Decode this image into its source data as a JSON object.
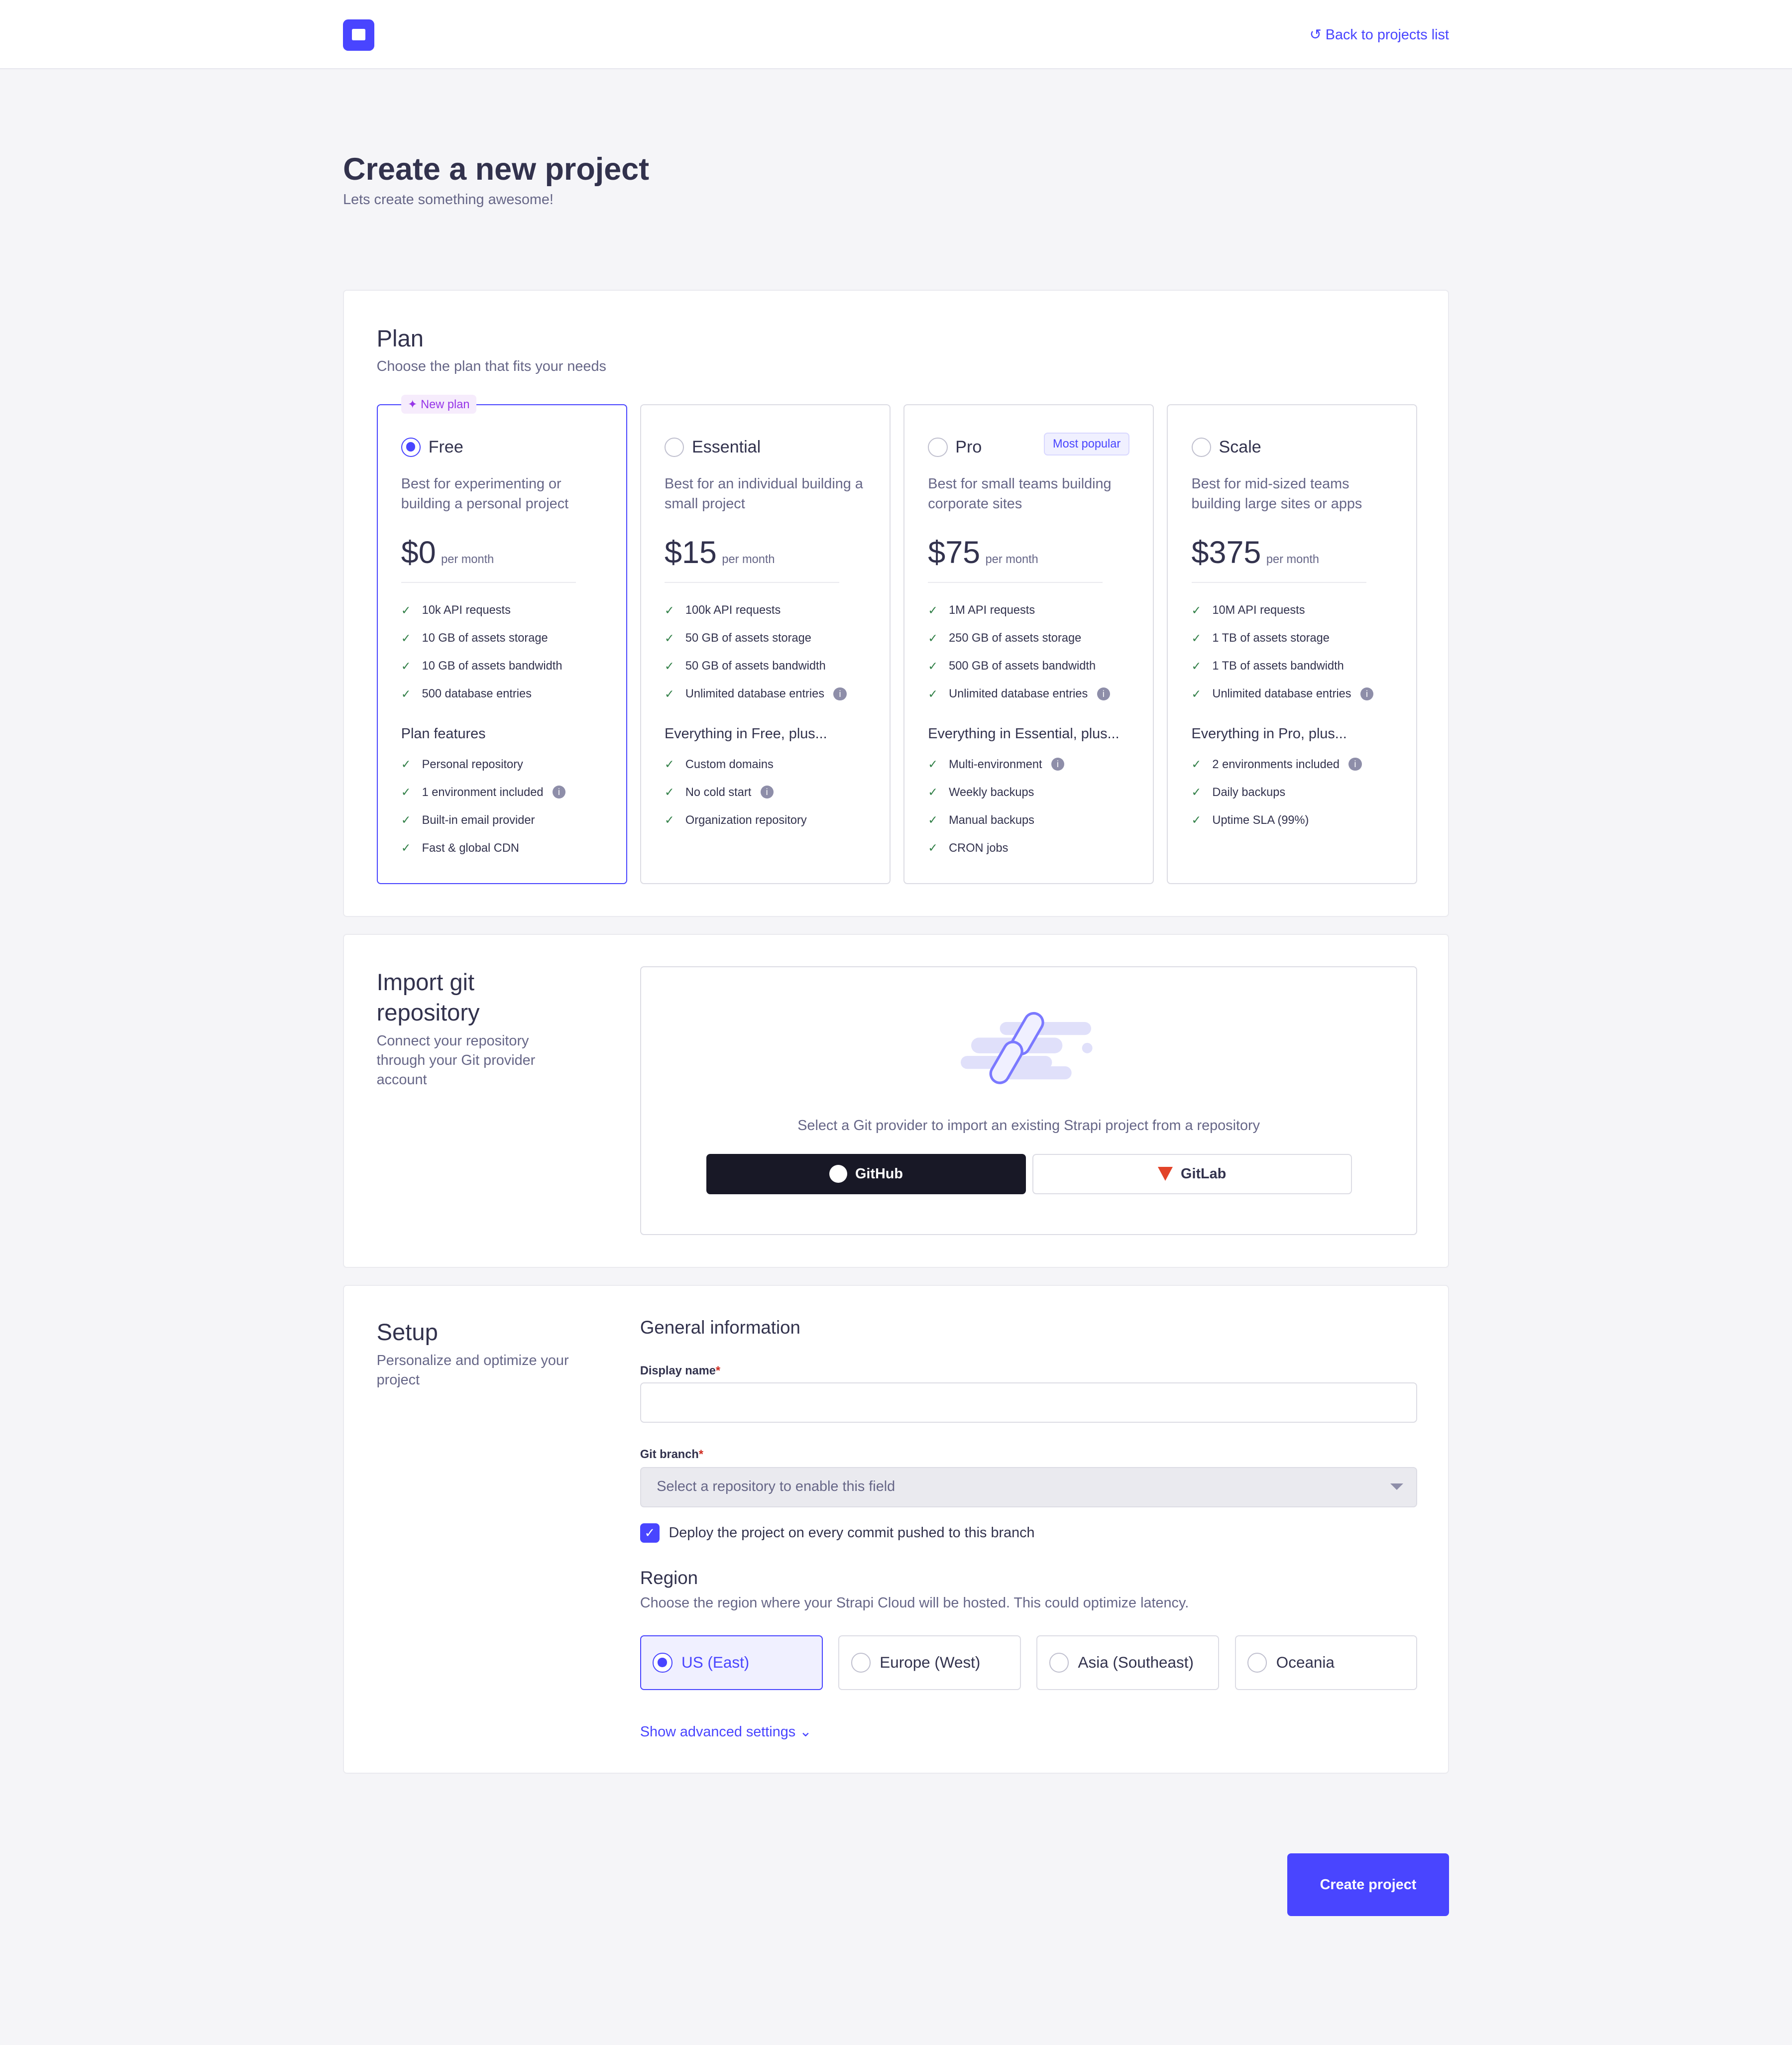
{
  "header": {
    "back_label": "Back to projects list"
  },
  "page": {
    "title": "Create a new project",
    "subtitle": "Lets create something awesome!"
  },
  "plan": {
    "title": "Plan",
    "subtitle": "Choose the plan that fits your needs",
    "new_badge": "New plan",
    "popular_badge": "Most popular",
    "per": "per month",
    "plans": [
      {
        "name": "Free",
        "selected": true,
        "desc": "Best for experimenting or building a personal project",
        "price": "$0",
        "limits": [
          "10k API requests",
          "10 GB of assets storage",
          "10 GB of assets bandwidth",
          "500 database entries"
        ],
        "features_title": "Plan features",
        "features": [
          "Personal repository",
          "1 environment included",
          "Built-in email provider",
          "Fast & global CDN"
        ]
      },
      {
        "name": "Essential",
        "selected": false,
        "desc": "Best for an individual building a small project",
        "price": "$15",
        "limits": [
          "100k API requests",
          "50 GB of assets storage",
          "50 GB of assets bandwidth",
          "Unlimited database entries"
        ],
        "features_title": "Everything in Free, plus...",
        "features": [
          "Custom domains",
          "No cold start",
          "Organization repository"
        ]
      },
      {
        "name": "Pro",
        "selected": false,
        "desc": "Best for small teams building corporate sites",
        "price": "$75",
        "limits": [
          "1M API requests",
          "250 GB of assets storage",
          "500 GB of assets bandwidth",
          "Unlimited database entries"
        ],
        "features_title": "Everything in Essential, plus...",
        "features": [
          "Multi-environment",
          "Weekly backups",
          "Manual backups",
          "CRON jobs"
        ]
      },
      {
        "name": "Scale",
        "selected": false,
        "desc": "Best for mid-sized teams building large sites or apps",
        "price": "$375",
        "limits": [
          "10M API requests",
          "1 TB of assets storage",
          "1 TB of assets bandwidth",
          "Unlimited database entries"
        ],
        "features_title": "Everything in Pro, plus...",
        "features": [
          "2 environments included",
          "Daily backups",
          "Uptime SLA (99%)"
        ]
      }
    ]
  },
  "git": {
    "title": "Import git repository",
    "subtitle": "Connect your repository through your Git provider account",
    "prompt": "Select a Git provider to import an existing Strapi project from a repository",
    "github": "GitHub",
    "gitlab": "GitLab"
  },
  "setup": {
    "title": "Setup",
    "subtitle": "Personalize and optimize your project",
    "general": "General information",
    "display_name_label": "Display name",
    "display_name_value": "",
    "git_branch_label": "Git branch",
    "git_branch_placeholder": "Select a repository to enable this field",
    "deploy_label": "Deploy the project on every commit pushed to this branch",
    "deploy_checked": true,
    "region_title": "Region",
    "region_desc": "Choose the region where your Strapi Cloud will be hosted. This could optimize latency.",
    "regions": [
      {
        "name": "US (East)",
        "selected": true
      },
      {
        "name": "Europe (West)",
        "selected": false
      },
      {
        "name": "Asia (Southeast)",
        "selected": false
      },
      {
        "name": "Oceania",
        "selected": false
      }
    ],
    "advanced": "Show advanced settings"
  },
  "create_label": "Create project",
  "colors": {
    "primary": "#4945ff",
    "dark": "#181826",
    "success": "#328048"
  }
}
